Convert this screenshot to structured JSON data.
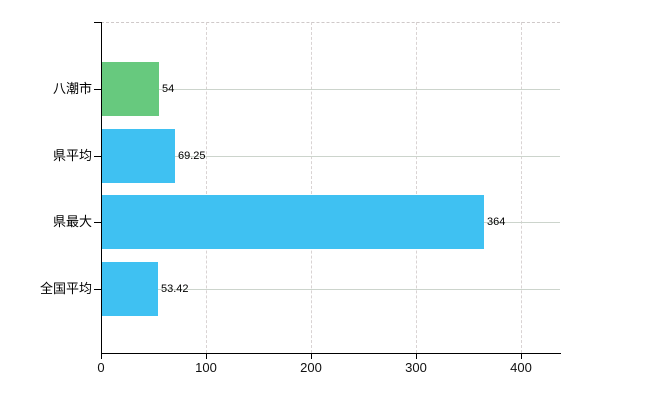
{
  "chart_data": {
    "type": "bar",
    "orientation": "horizontal",
    "title": "",
    "xlabel": "",
    "ylabel": "",
    "categories": [
      "八潮市",
      "県平均",
      "県最大",
      "全国平均"
    ],
    "values": [
      54,
      69.25,
      364,
      53.42
    ],
    "value_labels": [
      "54",
      "69.25",
      "364",
      "53.42"
    ],
    "bar_colors": [
      "#67c97e",
      "#3fc1f2",
      "#3fc1f2",
      "#3fc1f2"
    ],
    "x_ticks": [
      0,
      100,
      200,
      300,
      400
    ],
    "x_tick_labels": [
      "0",
      "100",
      "200",
      "300",
      "400"
    ],
    "xlim": [
      0,
      437
    ],
    "grid": true,
    "legend": false,
    "colors": {
      "highlight_bar": "#67c97e",
      "default_bar": "#3fc1f2",
      "axis": "#000000",
      "grid_horizontal": "#ccd4cc",
      "grid_vertical": "#d9d3d3",
      "plot_border_top": "#cfc9c9",
      "background": "#ffffff",
      "text": "#000000"
    }
  }
}
